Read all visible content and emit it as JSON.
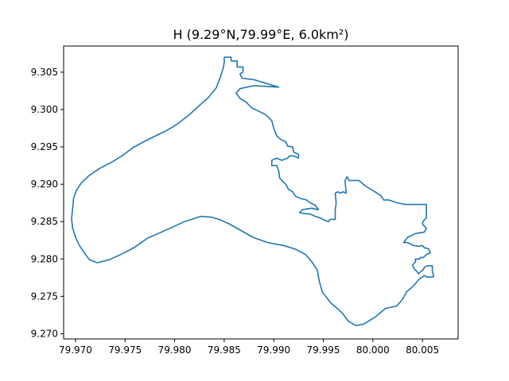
{
  "chart_data": {
    "type": "line",
    "title": "H (9.29°N,79.99°E,  6.0km²)",
    "xlabel": "",
    "ylabel": "",
    "xlim": [
      79.9688,
      80.0086
    ],
    "ylim": [
      9.2693,
      9.3085
    ],
    "grid": false,
    "x_ticks": [
      79.97,
      79.975,
      79.98,
      79.985,
      79.99,
      79.995,
      80.0,
      80.005
    ],
    "x_tick_labels": [
      "79.970",
      "79.975",
      "79.980",
      "79.985",
      "79.990",
      "79.995",
      "80.000",
      "80.005"
    ],
    "y_ticks": [
      9.27,
      9.275,
      9.28,
      9.285,
      9.29,
      9.295,
      9.3,
      9.305
    ],
    "y_tick_labels": [
      "9.270",
      "9.275",
      "9.280",
      "9.285",
      "9.290",
      "9.295",
      "9.300",
      "9.305"
    ],
    "series": [
      {
        "name": "outline",
        "color": "#1f77b4",
        "points": [
          [
            79.985,
            9.307
          ],
          [
            79.9857,
            9.307
          ],
          [
            79.9857,
            9.3065
          ],
          [
            79.9863,
            9.3065
          ],
          [
            79.9863,
            9.3057
          ],
          [
            79.9869,
            9.3057
          ],
          [
            79.9869,
            9.305
          ],
          [
            79.9866,
            9.3048
          ],
          [
            79.9868,
            9.3042
          ],
          [
            79.988,
            9.304
          ],
          [
            79.9905,
            9.303
          ],
          [
            79.988,
            9.3032
          ],
          [
            79.9866,
            9.3028
          ],
          [
            79.9862,
            9.3022
          ],
          [
            79.9866,
            9.3015
          ],
          [
            79.9872,
            9.301
          ],
          [
            79.9878,
            9.3002
          ],
          [
            79.9886,
            9.2997
          ],
          [
            79.9892,
            9.2993
          ],
          [
            79.9898,
            9.2985
          ],
          [
            79.99,
            9.2975
          ],
          [
            79.9903,
            9.2965
          ],
          [
            79.9907,
            9.296
          ],
          [
            79.9912,
            9.2957
          ],
          [
            79.9914,
            9.2951
          ],
          [
            79.9919,
            9.295
          ],
          [
            79.992,
            9.2943
          ],
          [
            79.9925,
            9.294
          ],
          [
            79.9925,
            9.2935
          ],
          [
            79.992,
            9.2938
          ],
          [
            79.9916,
            9.2938
          ],
          [
            79.9914,
            9.2935
          ],
          [
            79.9908,
            9.2932
          ],
          [
            79.9903,
            9.2935
          ],
          [
            79.9898,
            9.2932
          ],
          [
            79.9898,
            9.2925
          ],
          [
            79.9903,
            9.2925
          ],
          [
            79.9905,
            9.2918
          ],
          [
            79.9906,
            9.2908
          ],
          [
            79.9912,
            9.29
          ],
          [
            79.9915,
            9.2893
          ],
          [
            79.9919,
            9.289
          ],
          [
            79.9922,
            9.2884
          ],
          [
            79.9927,
            9.2881
          ],
          [
            79.9933,
            9.2879
          ],
          [
            79.9937,
            9.2875
          ],
          [
            79.9942,
            9.2872
          ],
          [
            79.9945,
            9.2866
          ],
          [
            79.9938,
            9.2868
          ],
          [
            79.9929,
            9.2866
          ],
          [
            79.9926,
            9.2862
          ],
          [
            79.993,
            9.2861
          ],
          [
            79.9937,
            9.286
          ],
          [
            79.9942,
            9.2857
          ],
          [
            79.9947,
            9.2855
          ],
          [
            79.9951,
            9.2852
          ],
          [
            79.9955,
            9.285
          ],
          [
            79.9957,
            9.2853
          ],
          [
            79.9962,
            9.2853
          ],
          [
            79.9962,
            9.2865
          ],
          [
            79.9963,
            9.2875
          ],
          [
            79.9962,
            9.2888
          ],
          [
            79.9965,
            9.289
          ],
          [
            79.9967,
            9.2888
          ],
          [
            79.997,
            9.289
          ],
          [
            79.9973,
            9.2888
          ],
          [
            79.9972,
            9.2905
          ],
          [
            79.9974,
            9.291
          ],
          [
            79.9976,
            9.2905
          ],
          [
            79.9986,
            9.2905
          ],
          [
            79.9992,
            9.2898
          ],
          [
            80.0002,
            9.289
          ],
          [
            80.0008,
            9.2885
          ],
          [
            80.0011,
            9.2879
          ],
          [
            80.0016,
            9.2879
          ],
          [
            80.0025,
            9.2875
          ],
          [
            80.0033,
            9.2873
          ],
          [
            80.0042,
            9.2873
          ],
          [
            80.0054,
            9.2873
          ],
          [
            80.0054,
            9.2866
          ],
          [
            80.0054,
            9.2855
          ],
          [
            80.0051,
            9.2851
          ],
          [
            80.005,
            9.2847
          ],
          [
            80.0054,
            9.2841
          ],
          [
            80.0052,
            9.2836
          ],
          [
            80.0047,
            9.2835
          ],
          [
            80.0043,
            9.2834
          ],
          [
            80.0035,
            9.2829
          ],
          [
            80.0031,
            9.2822
          ],
          [
            80.0035,
            9.2822
          ],
          [
            80.0041,
            9.2818
          ],
          [
            80.0046,
            9.2817
          ],
          [
            80.005,
            9.2818
          ],
          [
            80.0052,
            9.2815
          ],
          [
            80.0056,
            9.2814
          ],
          [
            80.0057,
            9.2811
          ],
          [
            80.0058,
            9.2808
          ],
          [
            80.0054,
            9.2806
          ],
          [
            80.0051,
            9.2802
          ],
          [
            80.0048,
            9.2802
          ],
          [
            80.0047,
            9.28
          ],
          [
            80.0043,
            9.28
          ],
          [
            80.0043,
            9.2796
          ],
          [
            80.004,
            9.2792
          ],
          [
            80.0042,
            9.2786
          ],
          [
            80.0044,
            9.2784
          ],
          [
            80.0046,
            9.278
          ],
          [
            80.0049,
            9.2784
          ],
          [
            80.0051,
            9.2786
          ],
          [
            80.0052,
            9.2789
          ],
          [
            80.0055,
            9.2791
          ],
          [
            80.006,
            9.2791
          ],
          [
            80.006,
            9.2783
          ],
          [
            80.0061,
            9.278
          ],
          [
            80.0061,
            9.2776
          ],
          [
            80.0054,
            9.2776
          ],
          [
            80.0052,
            9.2778
          ],
          [
            80.0048,
            9.2774
          ],
          [
            80.0046,
            9.2772
          ],
          [
            80.0041,
            9.2764
          ],
          [
            80.0034,
            9.2756
          ],
          [
            80.003,
            9.2746
          ],
          [
            80.0024,
            9.2737
          ],
          [
            80.0013,
            9.2734
          ],
          [
            80.0002,
            9.2722
          ],
          [
            79.9991,
            9.2713
          ],
          [
            79.9983,
            9.2711
          ],
          [
            79.9975,
            9.2717
          ],
          [
            79.9969,
            9.2728
          ],
          [
            79.9957,
            9.2742
          ],
          [
            79.9949,
            9.2756
          ],
          [
            79.9946,
            9.277
          ],
          [
            79.9944,
            9.2785
          ],
          [
            79.9938,
            9.2797
          ],
          [
            79.9932,
            9.2806
          ],
          [
            79.9922,
            9.2813
          ],
          [
            79.991,
            9.2818
          ],
          [
            79.9894,
            9.2822
          ],
          [
            79.9879,
            9.2829
          ],
          [
            79.9867,
            9.2838
          ],
          [
            79.9855,
            9.2847
          ],
          [
            79.9845,
            9.2853
          ],
          [
            79.9837,
            9.2856
          ],
          [
            79.9826,
            9.2857
          ],
          [
            79.9817,
            9.2853
          ],
          [
            79.981,
            9.285
          ],
          [
            79.9797,
            9.2842
          ],
          [
            79.9785,
            9.2835
          ],
          [
            79.9773,
            9.2828
          ],
          [
            79.976,
            9.2816
          ],
          [
            79.9749,
            9.2808
          ],
          [
            79.9734,
            9.2799
          ],
          [
            79.9722,
            9.2795
          ],
          [
            79.9714,
            9.2799
          ],
          [
            79.9709,
            9.2808
          ],
          [
            79.9704,
            9.2818
          ],
          [
            79.97,
            9.2829
          ],
          [
            79.9697,
            9.2842
          ],
          [
            79.9696,
            9.2854
          ],
          [
            79.9697,
            9.2866
          ],
          [
            79.9698,
            9.2881
          ],
          [
            79.9701,
            9.2892
          ],
          [
            79.9706,
            9.2902
          ],
          [
            79.9714,
            9.2912
          ],
          [
            79.9724,
            9.2921
          ],
          [
            79.9737,
            9.293
          ],
          [
            79.9748,
            9.2939
          ],
          [
            79.9758,
            9.2949
          ],
          [
            79.9769,
            9.2957
          ],
          [
            79.9781,
            9.2965
          ],
          [
            79.9792,
            9.2972
          ],
          [
            79.9802,
            9.298
          ],
          [
            79.9814,
            9.2992
          ],
          [
            79.9823,
            9.3003
          ],
          [
            79.9834,
            9.3016
          ],
          [
            79.9842,
            9.3029
          ],
          [
            79.9846,
            9.3043
          ],
          [
            79.9849,
            9.3055
          ],
          [
            79.985,
            9.3063
          ],
          [
            79.985,
            9.307
          ]
        ]
      }
    ]
  }
}
